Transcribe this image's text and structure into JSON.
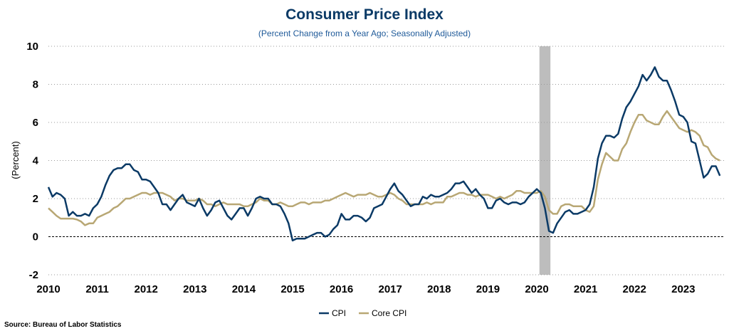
{
  "chart_data": {
    "type": "line",
    "title": "Consumer Price Index",
    "subtitle": "(Percent Change from a Year Ago; Seasonally Adjusted)",
    "xlabel": "",
    "ylabel": "(Percent)",
    "ylim": [
      -2,
      10
    ],
    "yticks": [
      "-2",
      "0",
      "2",
      "4",
      "6",
      "8",
      "10"
    ],
    "xticks": [
      "2010",
      "2011",
      "2012",
      "2013",
      "2014",
      "2015",
      "2016",
      "2017",
      "2018",
      "2019",
      "2020",
      "2021",
      "2022",
      "2023"
    ],
    "x_start": "2010-01",
    "frequency": "monthly",
    "grid": true,
    "legend_placement": "bottom-center",
    "recession_shading": {
      "start": "2020-02",
      "end": "2020-04",
      "color": "#bdbdbd"
    },
    "series": [
      {
        "name": "CPI",
        "color": "#0b3a66",
        "values": [
          2.6,
          2.1,
          2.3,
          2.2,
          2.0,
          1.1,
          1.3,
          1.1,
          1.1,
          1.2,
          1.1,
          1.5,
          1.7,
          2.1,
          2.7,
          3.2,
          3.5,
          3.6,
          3.6,
          3.8,
          3.8,
          3.5,
          3.4,
          3.0,
          3.0,
          2.9,
          2.6,
          2.3,
          1.7,
          1.7,
          1.4,
          1.7,
          2.0,
          2.2,
          1.8,
          1.7,
          1.6,
          2.0,
          1.5,
          1.1,
          1.4,
          1.8,
          1.9,
          1.5,
          1.1,
          0.9,
          1.2,
          1.5,
          1.5,
          1.1,
          1.5,
          2.0,
          2.1,
          2.0,
          2.0,
          1.7,
          1.7,
          1.6,
          1.2,
          0.7,
          -0.2,
          -0.1,
          -0.1,
          -0.1,
          0.0,
          0.1,
          0.2,
          0.2,
          0.0,
          0.1,
          0.4,
          0.6,
          1.2,
          0.9,
          0.9,
          1.1,
          1.1,
          1.0,
          0.8,
          1.0,
          1.5,
          1.6,
          1.7,
          2.1,
          2.5,
          2.8,
          2.4,
          2.2,
          1.9,
          1.6,
          1.7,
          1.7,
          2.1,
          2.0,
          2.2,
          2.1,
          2.1,
          2.2,
          2.3,
          2.5,
          2.8,
          2.8,
          2.9,
          2.6,
          2.3,
          2.5,
          2.2,
          2.0,
          1.5,
          1.5,
          1.9,
          2.0,
          1.8,
          1.7,
          1.8,
          1.8,
          1.7,
          1.8,
          2.1,
          2.3,
          2.5,
          2.3,
          1.5,
          0.3,
          0.2,
          0.7,
          1.0,
          1.3,
          1.4,
          1.2,
          1.2,
          1.3,
          1.4,
          1.7,
          2.6,
          4.1,
          4.9,
          5.3,
          5.3,
          5.2,
          5.4,
          6.2,
          6.8,
          7.1,
          7.5,
          7.9,
          8.5,
          8.2,
          8.5,
          8.9,
          8.4,
          8.2,
          8.2,
          7.7,
          7.1,
          6.4,
          6.3,
          6.0,
          5.0,
          4.9,
          4.0,
          3.1,
          3.3,
          3.7,
          3.7,
          3.2
        ]
      },
      {
        "name": "Core CPI",
        "color": "#b8a774",
        "values": [
          1.5,
          1.3,
          1.1,
          0.95,
          0.95,
          0.95,
          0.95,
          0.9,
          0.8,
          0.6,
          0.7,
          0.7,
          1.0,
          1.1,
          1.2,
          1.3,
          1.5,
          1.6,
          1.8,
          2.0,
          2.0,
          2.1,
          2.2,
          2.3,
          2.3,
          2.2,
          2.3,
          2.3,
          2.3,
          2.2,
          2.1,
          1.9,
          2.0,
          2.0,
          1.9,
          1.9,
          1.9,
          2.0,
          1.9,
          1.7,
          1.7,
          1.6,
          1.7,
          1.8,
          1.7,
          1.7,
          1.7,
          1.7,
          1.6,
          1.6,
          1.7,
          1.8,
          2.0,
          1.9,
          1.9,
          1.7,
          1.7,
          1.8,
          1.7,
          1.6,
          1.6,
          1.7,
          1.8,
          1.8,
          1.7,
          1.8,
          1.8,
          1.8,
          1.9,
          1.9,
          2.0,
          2.1,
          2.2,
          2.3,
          2.2,
          2.1,
          2.2,
          2.2,
          2.2,
          2.3,
          2.2,
          2.1,
          2.1,
          2.2,
          2.3,
          2.2,
          2.0,
          1.9,
          1.7,
          1.7,
          1.7,
          1.7,
          1.7,
          1.8,
          1.7,
          1.8,
          1.8,
          1.8,
          2.1,
          2.1,
          2.2,
          2.3,
          2.3,
          2.2,
          2.2,
          2.1,
          2.2,
          2.2,
          2.2,
          2.1,
          2.0,
          2.1,
          2.0,
          2.1,
          2.2,
          2.4,
          2.4,
          2.3,
          2.3,
          2.3,
          2.3,
          2.4,
          2.1,
          1.4,
          1.2,
          1.2,
          1.6,
          1.7,
          1.7,
          1.6,
          1.6,
          1.6,
          1.4,
          1.3,
          1.6,
          3.0,
          3.8,
          4.4,
          4.2,
          4.0,
          4.0,
          4.6,
          4.9,
          5.5,
          6.0,
          6.4,
          6.4,
          6.1,
          6.0,
          5.9,
          5.9,
          6.3,
          6.6,
          6.3,
          6.0,
          5.7,
          5.6,
          5.5,
          5.6,
          5.5,
          5.3,
          4.8,
          4.7,
          4.3,
          4.1,
          4.0
        ]
      }
    ],
    "source": "Source: Bureau of Labor Statistics"
  }
}
